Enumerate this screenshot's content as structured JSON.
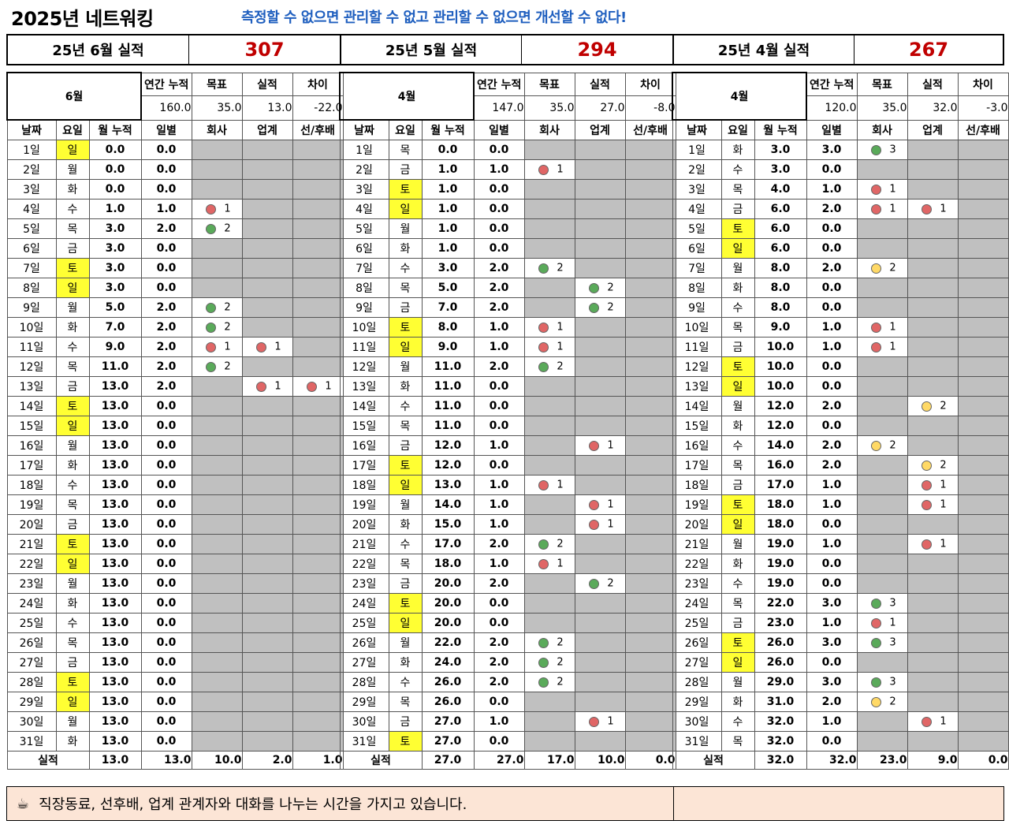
{
  "header": {
    "title": "2025년 네트워킹",
    "slogan": "측정할 수 없으면 관리할 수 없고 관리할 수 없으면 개선할 수 없다!"
  },
  "summary": [
    {
      "label": "25년 6월 실적",
      "value": "307"
    },
    {
      "label": "25년 5월 실적",
      "value": "294"
    },
    {
      "label": "25년 4월 실적",
      "value": "267"
    }
  ],
  "col_headers": {
    "date": "날짜",
    "weekday": "요일",
    "month_cum": "월 누적",
    "daily": "일별",
    "company": "회사",
    "industry": "업계",
    "senior": "선/후배"
  },
  "stat_headers": {
    "annual": "연간 누적",
    "target": "목표",
    "actual": "실적",
    "diff": "차이"
  },
  "footer_label": "실적",
  "note": {
    "icon": "coffee-icon",
    "text": "직장동료, 선후배, 업계 관계자와 대화를 나누는 시간을 가지고 있습니다."
  },
  "colors": {
    "accent_blue": "#1f5fbf",
    "value_red": "#c00000",
    "weekend_yellow": "#ffff33",
    "empty_gray": "#c0c0c0",
    "note_bg": "#fce5d6"
  },
  "panels": [
    {
      "month_label": "6월",
      "annual": "160.0",
      "target": "35.0",
      "actual": "13.0",
      "diff": "-22.0",
      "footer": {
        "cum": "13.0",
        "daily": "13.0",
        "company": "10.0",
        "industry": "2.0",
        "senior": "1.0"
      },
      "rows": [
        {
          "d": "1일",
          "w": "일",
          "cum": "0.0",
          "day": "0.0",
          "c": "",
          "i": "",
          "s": ""
        },
        {
          "d": "2일",
          "w": "월",
          "cum": "0.0",
          "day": "0.0",
          "c": "",
          "i": "",
          "s": ""
        },
        {
          "d": "3일",
          "w": "화",
          "cum": "0.0",
          "day": "0.0",
          "c": "",
          "i": "",
          "s": ""
        },
        {
          "d": "4일",
          "w": "수",
          "cum": "1.0",
          "day": "1.0",
          "c": "red:1",
          "i": "",
          "s": ""
        },
        {
          "d": "5일",
          "w": "목",
          "cum": "3.0",
          "day": "2.0",
          "c": "green:2",
          "i": "",
          "s": ""
        },
        {
          "d": "6일",
          "w": "금",
          "cum": "3.0",
          "day": "0.0",
          "c": "",
          "i": "",
          "s": ""
        },
        {
          "d": "7일",
          "w": "토",
          "cum": "3.0",
          "day": "0.0",
          "c": "",
          "i": "",
          "s": ""
        },
        {
          "d": "8일",
          "w": "일",
          "cum": "3.0",
          "day": "0.0",
          "c": "",
          "i": "",
          "s": ""
        },
        {
          "d": "9일",
          "w": "월",
          "cum": "5.0",
          "day": "2.0",
          "c": "green:2",
          "i": "",
          "s": ""
        },
        {
          "d": "10일",
          "w": "화",
          "cum": "7.0",
          "day": "2.0",
          "c": "green:2",
          "i": "",
          "s": ""
        },
        {
          "d": "11일",
          "w": "수",
          "cum": "9.0",
          "day": "2.0",
          "c": "red:1",
          "i": "red:1",
          "s": ""
        },
        {
          "d": "12일",
          "w": "목",
          "cum": "11.0",
          "day": "2.0",
          "c": "green:2",
          "i": "",
          "s": ""
        },
        {
          "d": "13일",
          "w": "금",
          "cum": "13.0",
          "day": "2.0",
          "c": "",
          "i": "red:1",
          "s": "red:1"
        },
        {
          "d": "14일",
          "w": "토",
          "cum": "13.0",
          "day": "0.0",
          "c": "",
          "i": "",
          "s": ""
        },
        {
          "d": "15일",
          "w": "일",
          "cum": "13.0",
          "day": "0.0",
          "c": "",
          "i": "",
          "s": ""
        },
        {
          "d": "16일",
          "w": "월",
          "cum": "13.0",
          "day": "0.0",
          "c": "",
          "i": "",
          "s": ""
        },
        {
          "d": "17일",
          "w": "화",
          "cum": "13.0",
          "day": "0.0",
          "c": "",
          "i": "",
          "s": ""
        },
        {
          "d": "18일",
          "w": "수",
          "cum": "13.0",
          "day": "0.0",
          "c": "",
          "i": "",
          "s": ""
        },
        {
          "d": "19일",
          "w": "목",
          "cum": "13.0",
          "day": "0.0",
          "c": "",
          "i": "",
          "s": ""
        },
        {
          "d": "20일",
          "w": "금",
          "cum": "13.0",
          "day": "0.0",
          "c": "",
          "i": "",
          "s": ""
        },
        {
          "d": "21일",
          "w": "토",
          "cum": "13.0",
          "day": "0.0",
          "c": "",
          "i": "",
          "s": ""
        },
        {
          "d": "22일",
          "w": "일",
          "cum": "13.0",
          "day": "0.0",
          "c": "",
          "i": "",
          "s": ""
        },
        {
          "d": "23일",
          "w": "월",
          "cum": "13.0",
          "day": "0.0",
          "c": "",
          "i": "",
          "s": ""
        },
        {
          "d": "24일",
          "w": "화",
          "cum": "13.0",
          "day": "0.0",
          "c": "",
          "i": "",
          "s": ""
        },
        {
          "d": "25일",
          "w": "수",
          "cum": "13.0",
          "day": "0.0",
          "c": "",
          "i": "",
          "s": ""
        },
        {
          "d": "26일",
          "w": "목",
          "cum": "13.0",
          "day": "0.0",
          "c": "",
          "i": "",
          "s": ""
        },
        {
          "d": "27일",
          "w": "금",
          "cum": "13.0",
          "day": "0.0",
          "c": "",
          "i": "",
          "s": ""
        },
        {
          "d": "28일",
          "w": "토",
          "cum": "13.0",
          "day": "0.0",
          "c": "",
          "i": "",
          "s": ""
        },
        {
          "d": "29일",
          "w": "일",
          "cum": "13.0",
          "day": "0.0",
          "c": "",
          "i": "",
          "s": ""
        },
        {
          "d": "30일",
          "w": "월",
          "cum": "13.0",
          "day": "0.0",
          "c": "",
          "i": "",
          "s": ""
        },
        {
          "d": "31일",
          "w": "화",
          "cum": "13.0",
          "day": "0.0",
          "c": "",
          "i": "",
          "s": ""
        }
      ]
    },
    {
      "month_label": "4월",
      "annual": "147.0",
      "target": "35.0",
      "actual": "27.0",
      "diff": "-8.0",
      "footer": {
        "cum": "27.0",
        "daily": "27.0",
        "company": "17.0",
        "industry": "10.0",
        "senior": "0.0"
      },
      "rows": [
        {
          "d": "1일",
          "w": "목",
          "cum": "0.0",
          "day": "0.0",
          "c": "",
          "i": "",
          "s": ""
        },
        {
          "d": "2일",
          "w": "금",
          "cum": "1.0",
          "day": "1.0",
          "c": "red:1",
          "i": "",
          "s": ""
        },
        {
          "d": "3일",
          "w": "토",
          "cum": "1.0",
          "day": "0.0",
          "c": "",
          "i": "",
          "s": ""
        },
        {
          "d": "4일",
          "w": "일",
          "cum": "1.0",
          "day": "0.0",
          "c": "",
          "i": "",
          "s": ""
        },
        {
          "d": "5일",
          "w": "월",
          "cum": "1.0",
          "day": "0.0",
          "c": "",
          "i": "",
          "s": ""
        },
        {
          "d": "6일",
          "w": "화",
          "cum": "1.0",
          "day": "0.0",
          "c": "",
          "i": "",
          "s": ""
        },
        {
          "d": "7일",
          "w": "수",
          "cum": "3.0",
          "day": "2.0",
          "c": "green:2",
          "i": "",
          "s": ""
        },
        {
          "d": "8일",
          "w": "목",
          "cum": "5.0",
          "day": "2.0",
          "c": "",
          "i": "green:2",
          "s": ""
        },
        {
          "d": "9일",
          "w": "금",
          "cum": "7.0",
          "day": "2.0",
          "c": "",
          "i": "green:2",
          "s": ""
        },
        {
          "d": "10일",
          "w": "토",
          "cum": "8.0",
          "day": "1.0",
          "c": "red:1",
          "i": "",
          "s": ""
        },
        {
          "d": "11일",
          "w": "일",
          "cum": "9.0",
          "day": "1.0",
          "c": "red:1",
          "i": "",
          "s": ""
        },
        {
          "d": "12일",
          "w": "월",
          "cum": "11.0",
          "day": "2.0",
          "c": "green:2",
          "i": "",
          "s": ""
        },
        {
          "d": "13일",
          "w": "화",
          "cum": "11.0",
          "day": "0.0",
          "c": "",
          "i": "",
          "s": ""
        },
        {
          "d": "14일",
          "w": "수",
          "cum": "11.0",
          "day": "0.0",
          "c": "",
          "i": "",
          "s": ""
        },
        {
          "d": "15일",
          "w": "목",
          "cum": "11.0",
          "day": "0.0",
          "c": "",
          "i": "",
          "s": ""
        },
        {
          "d": "16일",
          "w": "금",
          "cum": "12.0",
          "day": "1.0",
          "c": "",
          "i": "red:1",
          "s": ""
        },
        {
          "d": "17일",
          "w": "토",
          "cum": "12.0",
          "day": "0.0",
          "c": "",
          "i": "",
          "s": ""
        },
        {
          "d": "18일",
          "w": "일",
          "cum": "13.0",
          "day": "1.0",
          "c": "red:1",
          "i": "",
          "s": ""
        },
        {
          "d": "19일",
          "w": "월",
          "cum": "14.0",
          "day": "1.0",
          "c": "",
          "i": "red:1",
          "s": ""
        },
        {
          "d": "20일",
          "w": "화",
          "cum": "15.0",
          "day": "1.0",
          "c": "",
          "i": "red:1",
          "s": ""
        },
        {
          "d": "21일",
          "w": "수",
          "cum": "17.0",
          "day": "2.0",
          "c": "green:2",
          "i": "",
          "s": ""
        },
        {
          "d": "22일",
          "w": "목",
          "cum": "18.0",
          "day": "1.0",
          "c": "red:1",
          "i": "",
          "s": ""
        },
        {
          "d": "23일",
          "w": "금",
          "cum": "20.0",
          "day": "2.0",
          "c": "",
          "i": "green:2",
          "s": ""
        },
        {
          "d": "24일",
          "w": "토",
          "cum": "20.0",
          "day": "0.0",
          "c": "",
          "i": "",
          "s": ""
        },
        {
          "d": "25일",
          "w": "일",
          "cum": "20.0",
          "day": "0.0",
          "c": "",
          "i": "",
          "s": ""
        },
        {
          "d": "26일",
          "w": "월",
          "cum": "22.0",
          "day": "2.0",
          "c": "green:2",
          "i": "",
          "s": ""
        },
        {
          "d": "27일",
          "w": "화",
          "cum": "24.0",
          "day": "2.0",
          "c": "green:2",
          "i": "",
          "s": ""
        },
        {
          "d": "28일",
          "w": "수",
          "cum": "26.0",
          "day": "2.0",
          "c": "green:2",
          "i": "",
          "s": ""
        },
        {
          "d": "29일",
          "w": "목",
          "cum": "26.0",
          "day": "0.0",
          "c": "",
          "i": "",
          "s": ""
        },
        {
          "d": "30일",
          "w": "금",
          "cum": "27.0",
          "day": "1.0",
          "c": "",
          "i": "red:1",
          "s": ""
        },
        {
          "d": "31일",
          "w": "토",
          "cum": "27.0",
          "day": "0.0",
          "c": "",
          "i": "",
          "s": ""
        }
      ]
    },
    {
      "month_label": "4월",
      "annual": "120.0",
      "target": "35.0",
      "actual": "32.0",
      "diff": "-3.0",
      "footer": {
        "cum": "32.0",
        "daily": "32.0",
        "company": "23.0",
        "industry": "9.0",
        "senior": "0.0"
      },
      "rows": [
        {
          "d": "1일",
          "w": "화",
          "cum": "3.0",
          "day": "3.0",
          "c": "green:3",
          "i": "",
          "s": ""
        },
        {
          "d": "2일",
          "w": "수",
          "cum": "3.0",
          "day": "0.0",
          "c": "",
          "i": "",
          "s": ""
        },
        {
          "d": "3일",
          "w": "목",
          "cum": "4.0",
          "day": "1.0",
          "c": "red:1",
          "i": "",
          "s": ""
        },
        {
          "d": "4일",
          "w": "금",
          "cum": "6.0",
          "day": "2.0",
          "c": "red:1",
          "i": "red:1",
          "s": ""
        },
        {
          "d": "5일",
          "w": "토",
          "cum": "6.0",
          "day": "0.0",
          "c": "",
          "i": "",
          "s": ""
        },
        {
          "d": "6일",
          "w": "일",
          "cum": "6.0",
          "day": "0.0",
          "c": "",
          "i": "",
          "s": ""
        },
        {
          "d": "7일",
          "w": "월",
          "cum": "8.0",
          "day": "2.0",
          "c": "yellow:2",
          "i": "",
          "s": ""
        },
        {
          "d": "8일",
          "w": "화",
          "cum": "8.0",
          "day": "0.0",
          "c": "",
          "i": "",
          "s": ""
        },
        {
          "d": "9일",
          "w": "수",
          "cum": "8.0",
          "day": "0.0",
          "c": "",
          "i": "",
          "s": ""
        },
        {
          "d": "10일",
          "w": "목",
          "cum": "9.0",
          "day": "1.0",
          "c": "red:1",
          "i": "",
          "s": ""
        },
        {
          "d": "11일",
          "w": "금",
          "cum": "10.0",
          "day": "1.0",
          "c": "red:1",
          "i": "",
          "s": ""
        },
        {
          "d": "12일",
          "w": "토",
          "cum": "10.0",
          "day": "0.0",
          "c": "",
          "i": "",
          "s": ""
        },
        {
          "d": "13일",
          "w": "일",
          "cum": "10.0",
          "day": "0.0",
          "c": "",
          "i": "",
          "s": ""
        },
        {
          "d": "14일",
          "w": "월",
          "cum": "12.0",
          "day": "2.0",
          "c": "",
          "i": "yellow:2",
          "s": ""
        },
        {
          "d": "15일",
          "w": "화",
          "cum": "12.0",
          "day": "0.0",
          "c": "",
          "i": "",
          "s": ""
        },
        {
          "d": "16일",
          "w": "수",
          "cum": "14.0",
          "day": "2.0",
          "c": "yellow:2",
          "i": "",
          "s": ""
        },
        {
          "d": "17일",
          "w": "목",
          "cum": "16.0",
          "day": "2.0",
          "c": "",
          "i": "yellow:2",
          "s": ""
        },
        {
          "d": "18일",
          "w": "금",
          "cum": "17.0",
          "day": "1.0",
          "c": "",
          "i": "red:1",
          "s": ""
        },
        {
          "d": "19일",
          "w": "토",
          "cum": "18.0",
          "day": "1.0",
          "c": "",
          "i": "red:1",
          "s": ""
        },
        {
          "d": "20일",
          "w": "일",
          "cum": "18.0",
          "day": "0.0",
          "c": "",
          "i": "",
          "s": ""
        },
        {
          "d": "21일",
          "w": "월",
          "cum": "19.0",
          "day": "1.0",
          "c": "",
          "i": "red:1",
          "s": ""
        },
        {
          "d": "22일",
          "w": "화",
          "cum": "19.0",
          "day": "0.0",
          "c": "",
          "i": "",
          "s": ""
        },
        {
          "d": "23일",
          "w": "수",
          "cum": "19.0",
          "day": "0.0",
          "c": "",
          "i": "",
          "s": ""
        },
        {
          "d": "24일",
          "w": "목",
          "cum": "22.0",
          "day": "3.0",
          "c": "green:3",
          "i": "",
          "s": ""
        },
        {
          "d": "25일",
          "w": "금",
          "cum": "23.0",
          "day": "1.0",
          "c": "red:1",
          "i": "",
          "s": ""
        },
        {
          "d": "26일",
          "w": "토",
          "cum": "26.0",
          "day": "3.0",
          "c": "green:3",
          "i": "",
          "s": ""
        },
        {
          "d": "27일",
          "w": "일",
          "cum": "26.0",
          "day": "0.0",
          "c": "",
          "i": "",
          "s": ""
        },
        {
          "d": "28일",
          "w": "월",
          "cum": "29.0",
          "day": "3.0",
          "c": "green:3",
          "i": "",
          "s": ""
        },
        {
          "d": "29일",
          "w": "화",
          "cum": "31.0",
          "day": "2.0",
          "c": "yellow:2",
          "i": "",
          "s": ""
        },
        {
          "d": "30일",
          "w": "수",
          "cum": "32.0",
          "day": "1.0",
          "c": "",
          "i": "red:1",
          "s": ""
        },
        {
          "d": "31일",
          "w": "목",
          "cum": "32.0",
          "day": "0.0",
          "c": "",
          "i": "",
          "s": ""
        }
      ]
    }
  ]
}
